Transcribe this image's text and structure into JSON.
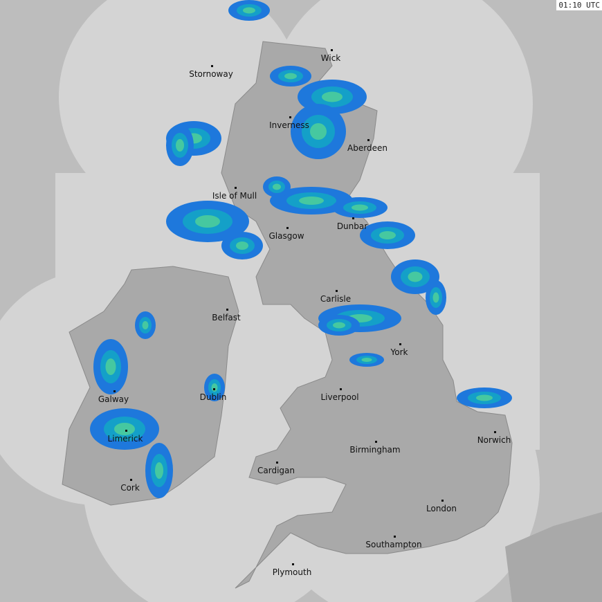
{
  "timestamp": "01:10 UTC",
  "colors": {
    "outside": "#bdbdbd",
    "coverage": "#d4d4d4",
    "land": "#a9a9a9",
    "border": "#8a8a8a",
    "rain_light": "#1e78dc",
    "rain_mid": "#14a0c8",
    "rain_heavy": "#46c8a0",
    "rain_peak": "#e6e632"
  },
  "cities": [
    "Wick",
    "Stornoway",
    "Inverness",
    "Aberdeen",
    "Isle of Mull",
    "Dunbar",
    "Glasgow",
    "Belfast",
    "Carlisle",
    "York",
    "Galway",
    "Dublin",
    "Liverpool",
    "Limerick",
    "Norwich",
    "Birmingham",
    "Cardigan",
    "Cork",
    "London",
    "Southampton",
    "Plymouth"
  ]
}
